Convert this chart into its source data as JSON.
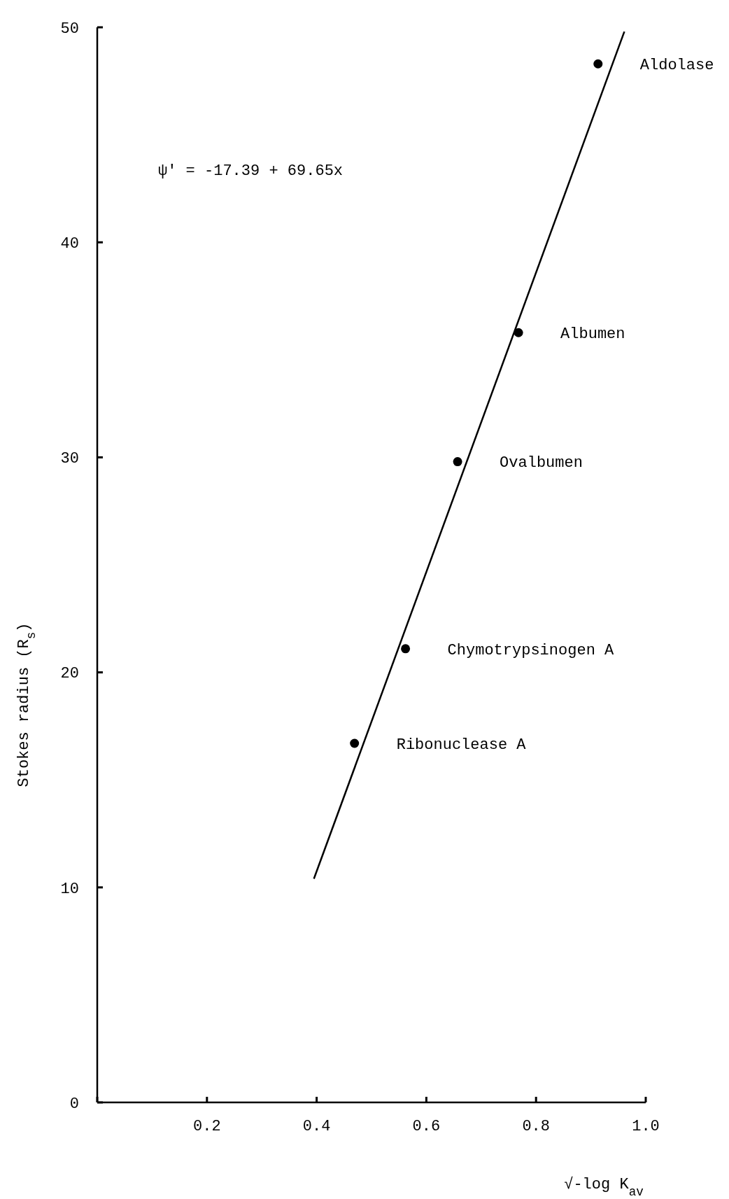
{
  "chart_data": {
    "type": "scatter",
    "xlabel": "√-log K$_{av}$",
    "ylabel": "Stokes radius (R$_{s}$)",
    "xlim": [
      0,
      1
    ],
    "ylim": [
      0,
      50
    ],
    "xticks": [
      {
        "value": 0,
        "label": null
      },
      0.2,
      0.4,
      0.6,
      0.8,
      {
        "value": 1,
        "label": "1.0"
      }
    ],
    "yticks": [
      0,
      10,
      20,
      30,
      40,
      50
    ],
    "grid": false,
    "series": [
      {
        "color": "#000000",
        "marker": "circle",
        "x": [
          0.913,
          0.768,
          0.657,
          0.562,
          0.469
        ],
        "values": [
          48.3,
          35.8,
          29.8,
          21.1,
          16.7
        ]
      },
      {
        "type": "line",
        "color": "#000000",
        "line_style": "solid",
        "marker": "none",
        "x": [
          0.395,
          0.961
        ],
        "values": [
          10.4,
          49.8
        ]
      }
    ],
    "annotations": [
      "ψ' = -17.39 + 69.65x",
      {
        "text": "Aldolase",
        "x": 0.913,
        "y": 48.3
      },
      {
        "text": "Albumen",
        "x": 0.768,
        "y": 35.8
      },
      {
        "text": "Ovalbumen",
        "x": 0.657,
        "y": 29.8
      },
      {
        "text": "Chymotrypsinogen A",
        "x": 0.562,
        "y": 21.1
      },
      {
        "text": "Ribonuclease A",
        "x": 0.469,
        "y": 16.7
      }
    ]
  }
}
